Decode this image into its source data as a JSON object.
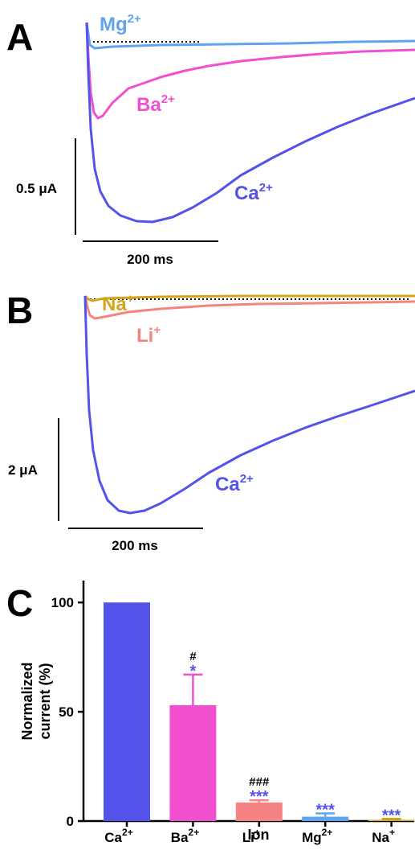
{
  "colors": {
    "ca": "#5353EC",
    "ba": "#F24FCF",
    "mg": "#5FA4EE",
    "li": "#F58383",
    "na": "#D2A51A",
    "baseline": "#111111",
    "axis": "#000000"
  },
  "chart_data": [
    {
      "panel": "A",
      "type": "line",
      "series": [
        {
          "name": "Mg",
          "ion_sup": "2+"
        },
        {
          "name": "Ba",
          "ion_sup": "2+"
        },
        {
          "name": "Ca",
          "ion_sup": "2+"
        }
      ],
      "scale_bars": {
        "y_label": "0.5 μA",
        "x_label": "200 ms"
      }
    },
    {
      "panel": "B",
      "type": "line",
      "series": [
        {
          "name": "Na",
          "ion_sup": "+"
        },
        {
          "name": "Li",
          "ion_sup": "+"
        },
        {
          "name": "Ca",
          "ion_sup": "2+"
        }
      ],
      "scale_bars": {
        "y_label": "2 μA",
        "x_label": "200 ms"
      }
    },
    {
      "panel": "C",
      "type": "bar",
      "categories": [
        {
          "name": "Ca",
          "sup": "2+"
        },
        {
          "name": "Ba",
          "sup": "2+"
        },
        {
          "name": "Li",
          "sup": "+"
        },
        {
          "name": "Mg",
          "sup": "2+"
        },
        {
          "name": "Na",
          "sup": "+"
        }
      ],
      "values": [
        100,
        53,
        8.5,
        2,
        0.5
      ],
      "errors": [
        0,
        14,
        1,
        1.5,
        0.5
      ],
      "significance_vs_ca": [
        "",
        "*",
        "***",
        "***",
        "***"
      ],
      "significance_hash": [
        "",
        "#",
        "###",
        "",
        ""
      ],
      "ylabel_line1": "Normalized",
      "ylabel_line2": "current (%)",
      "xlabel": "Ion",
      "yticks": [
        0,
        50,
        100
      ],
      "ylim": [
        0,
        110
      ]
    }
  ]
}
